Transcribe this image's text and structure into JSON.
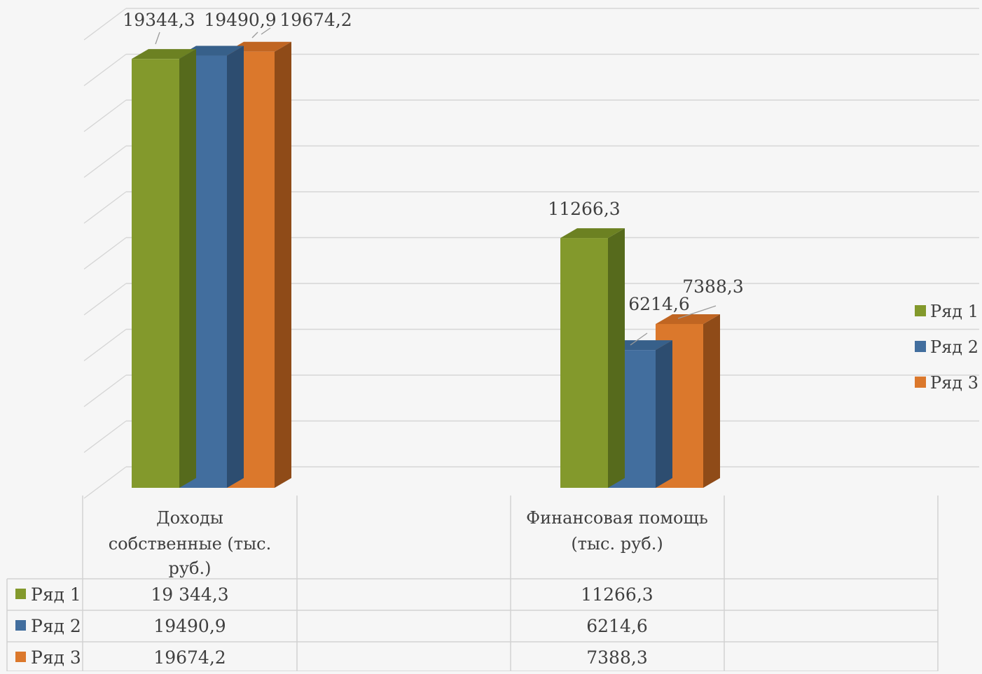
{
  "chart_data": {
    "type": "bar",
    "categories": [
      "Доходы собственные (тыс. руб.)",
      "Финансовая помощь (тыс. руб.)"
    ],
    "category_lines": [
      [
        "Доходы",
        "собственные (тыс.",
        "руб.)"
      ],
      [
        "Финансовая помощь",
        "(тыс. руб.)"
      ]
    ],
    "series": [
      {
        "name": "Ряд 1",
        "values": [
          19344.3,
          11266.3
        ],
        "color": "#83992c",
        "side_color": "#566a1c",
        "top_color": "#6c8122"
      },
      {
        "name": "Ряд 2",
        "values": [
          19490.9,
          6214.6
        ],
        "color": "#426e9e",
        "side_color": "#2d4d70",
        "top_color": "#37608a"
      },
      {
        "name": "Ряд 3",
        "values": [
          19674.2,
          7388.3
        ],
        "color": "#db782c",
        "side_color": "#8f4b18",
        "top_color": "#c06522"
      }
    ],
    "data_labels": [
      [
        "19344,3",
        "11266,3"
      ],
      [
        "19490,9",
        "6214,6"
      ],
      [
        "19674,2",
        "7388,3"
      ]
    ],
    "table_values": [
      [
        "19 344,3",
        "11266,3"
      ],
      [
        "19490,9",
        "6214,6"
      ],
      [
        "19674,2",
        "7388,3"
      ]
    ],
    "ylim": [
      0,
      20000
    ],
    "grid": true,
    "legend": "right",
    "data_table": true,
    "title": "",
    "xlabel": "",
    "ylabel": ""
  }
}
